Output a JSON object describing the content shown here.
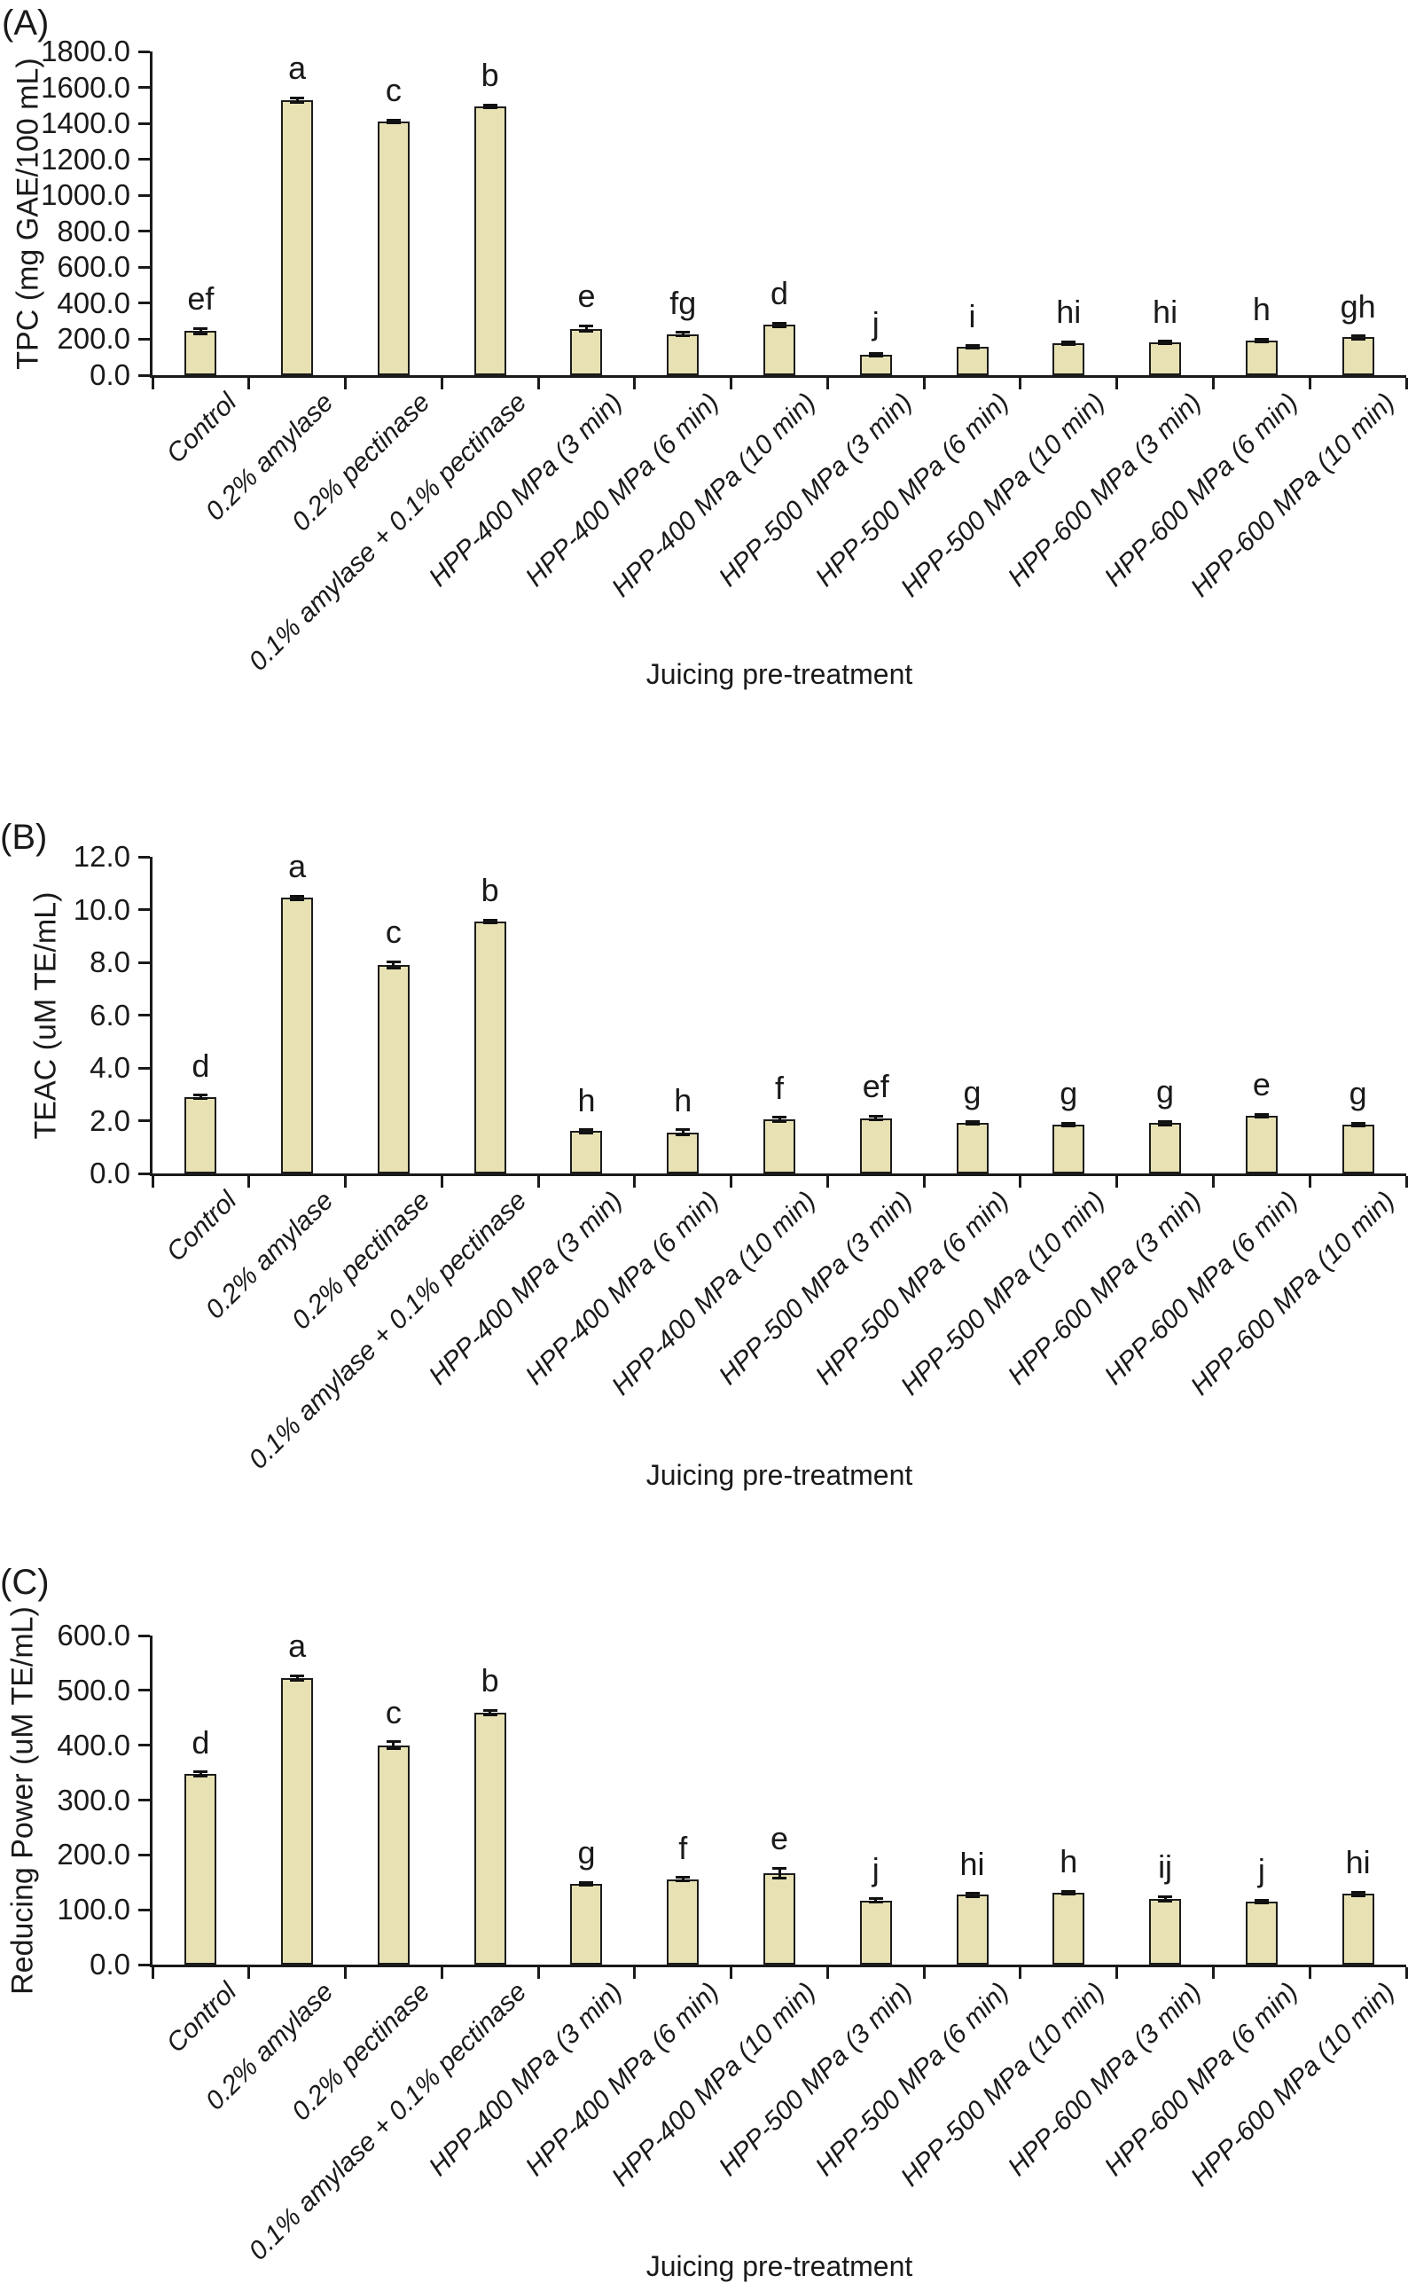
{
  "style": {
    "bar_fill": "#e8e1b3",
    "bar_border": "#1c1c1c",
    "axis_color": "#1a1a1a",
    "text_color": "#1a1a1a",
    "background": "#ffffff"
  },
  "chart_data": [
    {
      "type": "bar",
      "panel_label": "(A)",
      "ylabel": "TPC (mg GAE/100 mL)",
      "xlabel": "Juicing pre-treatment",
      "ylim": [
        0,
        1800
      ],
      "ytick_step": 200,
      "ytick_labels": [
        "0.0",
        "200.0",
        "400.0",
        "600.0",
        "800.0",
        "1000.0",
        "1200.0",
        "1400.0",
        "1600.0",
        "1800.0"
      ],
      "grid": false,
      "legend": null,
      "categories": [
        "Control",
        "0.2% amylase",
        "0.2% pectinase",
        "0.1% amylase + 0.1% pectinase",
        "HPP-400 MPa (3 min)",
        "HPP-400 MPa (6 min)",
        "HPP-400 MPa (10 min)",
        "HPP-500 MPa (3 min)",
        "HPP-500 MPa (6 min)",
        "HPP-500 MPa (10 min)",
        "HPP-600 MPa (3 min)",
        "HPP-600 MPa (6 min)",
        "HPP-600 MPa (10 min)"
      ],
      "values": [
        245,
        1530,
        1410,
        1495,
        258,
        228,
        280,
        113,
        157,
        178,
        182,
        192,
        210
      ],
      "errors": [
        15,
        12,
        8,
        8,
        16,
        10,
        10,
        8,
        8,
        6,
        5,
        8,
        8
      ],
      "sig_letters": [
        "ef",
        "a",
        "c",
        "b",
        "e",
        "fg",
        "d",
        "j",
        "i",
        "hi",
        "hi",
        "h",
        "gh"
      ]
    },
    {
      "type": "bar",
      "panel_label": "(B)",
      "ylabel": "TEAC (uM TE/mL)",
      "xlabel": "Juicing pre-treatment",
      "ylim": [
        0,
        12
      ],
      "ytick_step": 2,
      "ytick_labels": [
        "0.0",
        "2.0",
        "4.0",
        "6.0",
        "8.0",
        "10.0",
        "12.0"
      ],
      "grid": false,
      "legend": null,
      "categories": [
        "Control",
        "0.2% amylase",
        "0.2% pectinase",
        "0.1% amylase + 0.1% pectinase",
        "HPP-400 MPa (3 min)",
        "HPP-400 MPa (6 min)",
        "HPP-400 MPa (10 min)",
        "HPP-500 MPa (3 min)",
        "HPP-500 MPa (6 min)",
        "HPP-500 MPa (10 min)",
        "HPP-600 MPa (3 min)",
        "HPP-600 MPa (6 min)",
        "HPP-600 MPa (10 min)"
      ],
      "values": [
        2.9,
        10.45,
        7.9,
        9.55,
        1.6,
        1.55,
        2.05,
        2.1,
        1.9,
        1.85,
        1.9,
        2.2,
        1.85
      ],
      "errors": [
        0.06,
        0.07,
        0.12,
        0.06,
        0.06,
        0.1,
        0.08,
        0.07,
        0.05,
        0.04,
        0.07,
        0.04,
        0.06
      ],
      "sig_letters": [
        "d",
        "a",
        "c",
        "b",
        "h",
        "h",
        "f",
        "ef",
        "g",
        "g",
        "g",
        "e",
        "g"
      ]
    },
    {
      "type": "bar",
      "panel_label": "(C)",
      "ylabel": "Reducing Power (uM TE/mL)",
      "xlabel": "Juicing pre-treatment",
      "ylim": [
        0,
        600
      ],
      "ytick_step": 100,
      "ytick_labels": [
        "0.0",
        "100.0",
        "200.0",
        "300.0",
        "400.0",
        "500.0",
        "600.0"
      ],
      "grid": false,
      "legend": null,
      "categories": [
        "Control",
        "0.2% amylase",
        "0.2% pectinase",
        "0.1% amylase + 0.1% pectinase",
        "HPP-400 MPa (3 min)",
        "HPP-400 MPa (6 min)",
        "HPP-400 MPa (10 min)",
        "HPP-500 MPa (3 min)",
        "HPP-500 MPa (6 min)",
        "HPP-500 MPa (10 min)",
        "HPP-600 MPa (3 min)",
        "HPP-600 MPa (6 min)",
        "HPP-600 MPa (10 min)"
      ],
      "values": [
        347,
        523,
        400,
        460,
        147,
        156,
        167,
        117,
        127,
        131,
        120,
        115,
        129
      ],
      "errors": [
        4,
        4,
        6,
        4,
        3,
        3,
        9,
        3,
        3,
        3,
        4,
        3,
        3
      ],
      "sig_letters": [
        "d",
        "a",
        "c",
        "b",
        "g",
        "f",
        "e",
        "j",
        "hi",
        "h",
        "ij",
        "j",
        "hi"
      ]
    }
  ]
}
